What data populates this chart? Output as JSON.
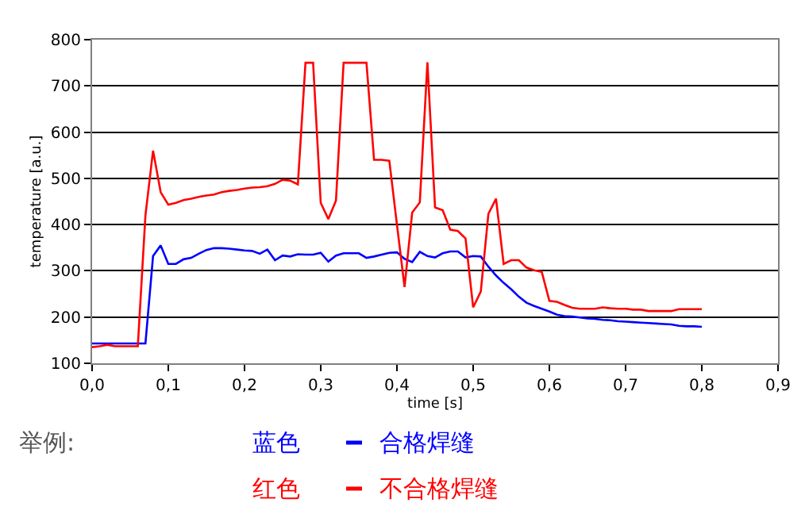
{
  "chart_data": {
    "type": "line",
    "xlabel": "time [s]",
    "ylabel": "temperature [a.u.]",
    "x": [
      0,
      0.01,
      0.02,
      0.03,
      0.04,
      0.05,
      0.06,
      0.07,
      0.08,
      0.09,
      0.1,
      0.11,
      0.12,
      0.13,
      0.14,
      0.15,
      0.16,
      0.17,
      0.18,
      0.19,
      0.2,
      0.21,
      0.22,
      0.23,
      0.24,
      0.25,
      0.26,
      0.27,
      0.28,
      0.29,
      0.3,
      0.31,
      0.32,
      0.33,
      0.34,
      0.35,
      0.36,
      0.37,
      0.38,
      0.39,
      0.4,
      0.41,
      0.42,
      0.43,
      0.44,
      0.45,
      0.46,
      0.47,
      0.48,
      0.49,
      0.5,
      0.51,
      0.52,
      0.53,
      0.54,
      0.55,
      0.56,
      0.57,
      0.58,
      0.59,
      0.6,
      0.61,
      0.62,
      0.63,
      0.64,
      0.65,
      0.66,
      0.67,
      0.68,
      0.69,
      0.7,
      0.71,
      0.72,
      0.73,
      0.74,
      0.75,
      0.76,
      0.77,
      0.78,
      0.79,
      0.8
    ],
    "series": [
      {
        "name": "合格焊缝",
        "color": "#0000ff",
        "values": [
          143,
          143,
          143,
          143,
          143,
          143,
          143,
          143,
          332,
          355,
          315,
          315,
          325,
          328,
          337,
          345,
          349,
          349,
          348,
          346,
          344,
          343,
          337,
          346,
          323,
          333,
          331,
          336,
          335,
          335,
          339,
          320,
          333,
          338,
          338,
          338,
          328,
          331,
          335,
          339,
          340,
          326,
          319,
          341,
          332,
          329,
          338,
          342,
          342,
          329,
          332,
          331,
          309,
          290,
          274,
          260,
          244,
          231,
          224,
          218,
          212,
          205,
          202,
          201,
          199,
          197,
          196,
          194,
          193,
          191,
          190,
          189,
          188,
          187,
          186,
          185,
          184,
          181,
          180,
          180,
          179
        ]
      },
      {
        "name": "不合格焊缝",
        "color": "#ff0000",
        "values": [
          135,
          137,
          140,
          137,
          137,
          137,
          137,
          420,
          560,
          470,
          443,
          447,
          453,
          456,
          460,
          463,
          465,
          470,
          473,
          475,
          478,
          480,
          481,
          483,
          488,
          497,
          495,
          487,
          750,
          750,
          447,
          412,
          452,
          750,
          750,
          750,
          750,
          540,
          540,
          538,
          400,
          265,
          426,
          448,
          751,
          437,
          431,
          389,
          386,
          370,
          221,
          255,
          423,
          456,
          315,
          323,
          323,
          307,
          301,
          298,
          235,
          233,
          226,
          220,
          218,
          218,
          218,
          221,
          219,
          218,
          218,
          216,
          216,
          213,
          213,
          213,
          213,
          217,
          217,
          217,
          217
        ]
      }
    ],
    "xlim": [
      0,
      0.9
    ],
    "ylim": [
      100,
      800
    ],
    "xticks": [
      {
        "value": 0,
        "label": "0,0"
      },
      {
        "value": 0.1,
        "label": "0,1"
      },
      {
        "value": 0.2,
        "label": "0,2"
      },
      {
        "value": 0.3,
        "label": "0,3"
      },
      {
        "value": 0.4,
        "label": "0,4"
      },
      {
        "value": 0.5,
        "label": "0,5"
      },
      {
        "value": 0.6,
        "label": "0,6"
      },
      {
        "value": 0.7,
        "label": "0,7"
      },
      {
        "value": 0.8,
        "label": "0,8"
      },
      {
        "value": 0.9,
        "label": "0,9"
      }
    ],
    "yticks": [
      100,
      200,
      300,
      400,
      500,
      600,
      700,
      800
    ],
    "grid": "y",
    "legend": "bottom",
    "marker": "none",
    "line_style": "solid",
    "annotations": [
      "举例:",
      "蓝色",
      "红色"
    ]
  }
}
